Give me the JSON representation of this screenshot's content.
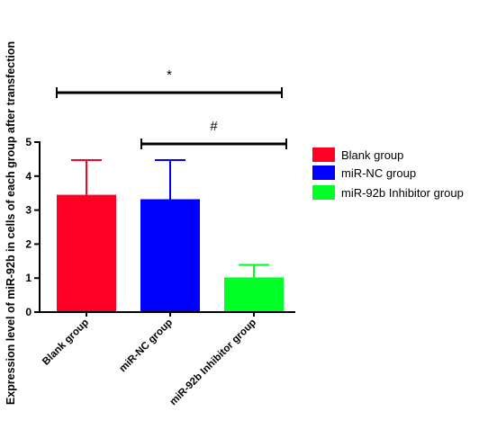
{
  "chart_data": {
    "type": "bar",
    "title": "",
    "xlabel": "",
    "ylabel": "Expression level of miR-92b in cells of each group after transfection",
    "ylim": [
      0,
      5
    ],
    "yticks": [
      "0",
      "1",
      "2",
      "3",
      "4",
      "5"
    ],
    "categories": [
      "Blank group",
      "miR-NC group",
      "miR-92b Inhibitor group"
    ],
    "values": [
      3.45,
      3.32,
      1.02
    ],
    "errors": [
      1.02,
      1.15,
      0.37
    ],
    "colors": [
      "#ff0025",
      "#0000ff",
      "#00ff26"
    ],
    "legend": {
      "placement": "right",
      "entries": [
        "Blank group",
        "miR-NC group",
        "miR-92b Inhibitor group"
      ]
    },
    "annotations": [
      {
        "label": "*",
        "from": 0,
        "to": 2
      },
      {
        "label": "#",
        "from": 1,
        "to": 2
      }
    ]
  }
}
